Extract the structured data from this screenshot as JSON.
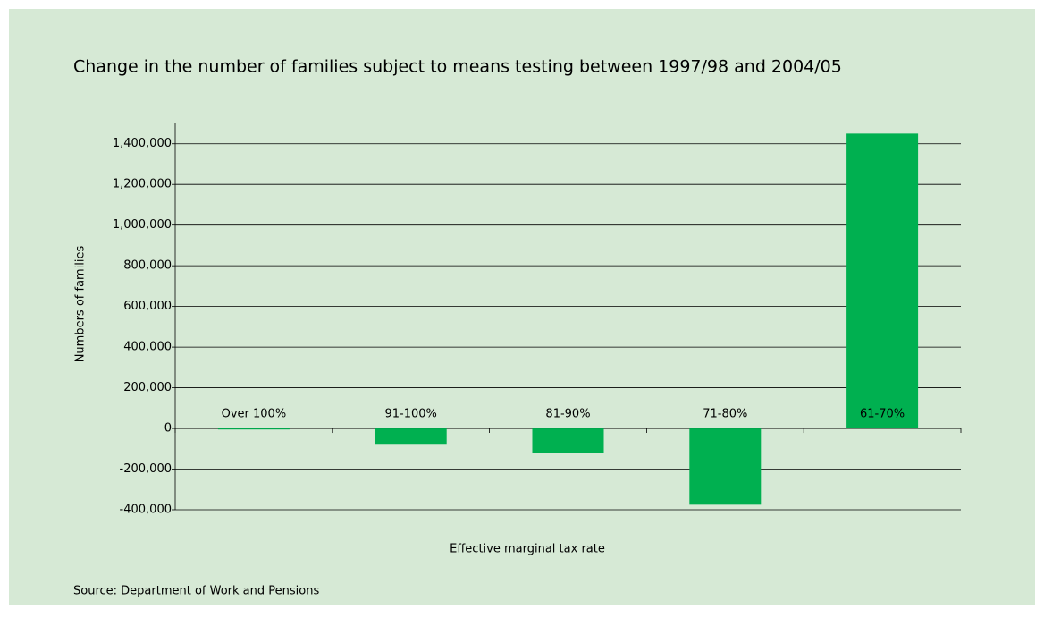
{
  "chart_data": {
    "type": "bar",
    "title": "Change in the number of families subject to means testing between 1997/98 and 2004/05",
    "x_label": "Effective marginal tax rate",
    "y_label": "Numbers of families",
    "source": "Source: Department of Work and Pensions",
    "categories": [
      "Over 100%",
      "91-100%",
      "81-90%",
      "71-80%",
      "61-70%"
    ],
    "values": [
      -5000,
      -80000,
      -120000,
      -375000,
      1450000
    ],
    "color": "#00b050",
    "ylim": [
      -400000,
      1500000
    ],
    "yticks": [
      {
        "value": -400000,
        "label": "-400,000"
      },
      {
        "value": -200000,
        "label": "-200,000"
      },
      0,
      {
        "value": 200000,
        "label": "200,000"
      },
      {
        "value": 400000,
        "label": "400,000"
      },
      {
        "value": 600000,
        "label": "600,000"
      },
      {
        "value": 800000,
        "label": "800,000"
      },
      {
        "value": 1000000,
        "label": "1,000,000"
      },
      {
        "value": 1200000,
        "label": "1,200,000"
      },
      {
        "value": 1400000,
        "label": "1,400,000"
      }
    ],
    "grid": true
  }
}
